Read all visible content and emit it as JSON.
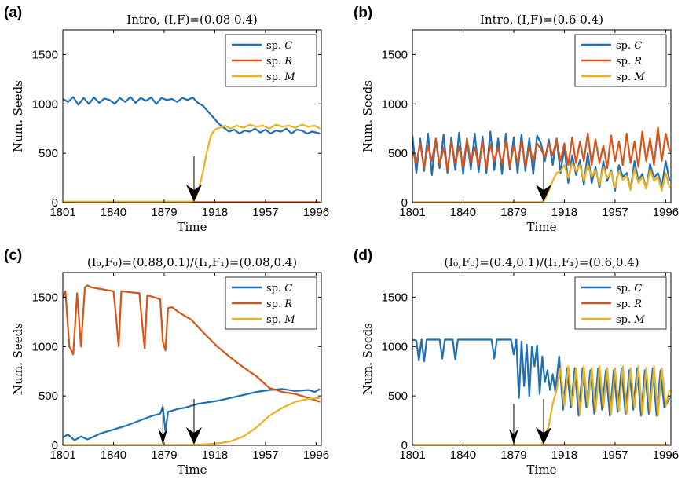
{
  "chart_data": [
    {
      "type": "line",
      "panel": "(a)",
      "title": "Intro, (I,F)=(0.08 0.4)",
      "xlabel": "Time",
      "ylabel": "Num. Seeds",
      "xlim": [
        1801,
        2000
      ],
      "ylim": [
        0,
        1750
      ],
      "xticks": [
        1801,
        1840,
        1879,
        1918,
        1957,
        1996
      ],
      "yticks": [
        0,
        500,
        1000,
        1500
      ],
      "legend": "top-right",
      "grid": false,
      "arrows": [
        1902
      ],
      "series": [
        {
          "name": "sp. C",
          "color": "#1f6fb5",
          "x": [
            1801,
            1805,
            1809,
            1813,
            1817,
            1821,
            1825,
            1829,
            1833,
            1837,
            1841,
            1845,
            1849,
            1853,
            1857,
            1861,
            1865,
            1869,
            1873,
            1877,
            1881,
            1885,
            1889,
            1893,
            1897,
            1901,
            1905,
            1909,
            1913,
            1917,
            1921,
            1925,
            1929,
            1933,
            1937,
            1941,
            1945,
            1949,
            1953,
            1957,
            1961,
            1965,
            1969,
            1973,
            1977,
            1981,
            1985,
            1989,
            1993,
            1999
          ],
          "values": [
            1050,
            1020,
            1070,
            990,
            1060,
            1000,
            1065,
            1010,
            1055,
            1040,
            1000,
            1060,
            1020,
            1070,
            1010,
            1060,
            1030,
            1065,
            1000,
            1060,
            1040,
            1050,
            1020,
            1060,
            1040,
            1065,
            1010,
            980,
            920,
            860,
            800,
            760,
            720,
            740,
            700,
            730,
            720,
            750,
            710,
            740,
            700,
            730,
            720,
            750,
            700,
            740,
            730,
            700,
            720,
            700
          ]
        },
        {
          "name": "sp. R",
          "color": "#d95319",
          "x": [
            1801,
            1999
          ],
          "values": [
            5,
            5
          ]
        },
        {
          "name": "sp. M",
          "color": "#edb120",
          "x": [
            1801,
            1900,
            1903,
            1906,
            1909,
            1912,
            1915,
            1918,
            1922,
            1926,
            1930,
            1935,
            1940,
            1945,
            1950,
            1955,
            1960,
            1965,
            1970,
            1975,
            1980,
            1985,
            1990,
            1995,
            1999
          ],
          "values": [
            10,
            10,
            40,
            150,
            320,
            520,
            680,
            740,
            760,
            780,
            750,
            780,
            760,
            790,
            770,
            780,
            750,
            790,
            770,
            780,
            760,
            790,
            770,
            780,
            750
          ]
        }
      ]
    },
    {
      "type": "line",
      "panel": "(b)",
      "title": "Intro, (I,F)=(0.6 0.4)",
      "xlabel": "Time",
      "ylabel": "Num. Seeds",
      "xlim": [
        1801,
        2000
      ],
      "ylim": [
        0,
        1750
      ],
      "xticks": [
        1801,
        1840,
        1879,
        1918,
        1957,
        1996
      ],
      "yticks": [
        0,
        500,
        1000,
        1500
      ],
      "legend": "top-right",
      "grid": false,
      "arrows": [
        1902
      ],
      "series": [
        {
          "name": "sp. C",
          "color": "#1f6fb5",
          "x": [
            1801,
            1804,
            1807,
            1810,
            1813,
            1816,
            1819,
            1822,
            1825,
            1828,
            1831,
            1834,
            1837,
            1840,
            1843,
            1846,
            1849,
            1852,
            1855,
            1858,
            1861,
            1864,
            1867,
            1870,
            1873,
            1876,
            1879,
            1882,
            1885,
            1888,
            1891,
            1894,
            1897,
            1900,
            1903,
            1906,
            1909,
            1912,
            1915,
            1918,
            1921,
            1924,
            1927,
            1930,
            1933,
            1936,
            1939,
            1942,
            1945,
            1948,
            1951,
            1954,
            1957,
            1960,
            1963,
            1966,
            1969,
            1972,
            1975,
            1978,
            1981,
            1984,
            1987,
            1990,
            1993,
            1996,
            1999
          ],
          "values": [
            680,
            300,
            650,
            320,
            700,
            280,
            640,
            350,
            690,
            300,
            660,
            330,
            710,
            290,
            650,
            340,
            700,
            310,
            670,
            300,
            720,
            330,
            650,
            290,
            700,
            340,
            660,
            300,
            690,
            320,
            650,
            290,
            680,
            600,
            420,
            640,
            380,
            650,
            300,
            560,
            200,
            480,
            280,
            430,
            180,
            500,
            200,
            360,
            150,
            420,
            220,
            330,
            120,
            380,
            260,
            300,
            130,
            420,
            220,
            290,
            140,
            390,
            250,
            300,
            160,
            420,
            220
          ]
        },
        {
          "name": "sp. R",
          "color": "#d95319",
          "x": [
            1801,
            1804,
            1807,
            1810,
            1813,
            1816,
            1819,
            1822,
            1825,
            1828,
            1831,
            1834,
            1837,
            1840,
            1843,
            1846,
            1849,
            1852,
            1855,
            1858,
            1861,
            1864,
            1867,
            1870,
            1873,
            1876,
            1879,
            1882,
            1885,
            1888,
            1891,
            1894,
            1897,
            1900,
            1903,
            1906,
            1909,
            1912,
            1915,
            1918,
            1921,
            1924,
            1927,
            1930,
            1933,
            1936,
            1939,
            1942,
            1945,
            1948,
            1951,
            1954,
            1957,
            1960,
            1963,
            1966,
            1969,
            1972,
            1975,
            1978,
            1981,
            1984,
            1987,
            1990,
            1993,
            1996,
            1999
          ],
          "values": [
            520,
            400,
            600,
            350,
            580,
            420,
            650,
            380,
            560,
            330,
            620,
            400,
            570,
            360,
            640,
            410,
            560,
            380,
            620,
            350,
            590,
            420,
            560,
            390,
            630,
            360,
            580,
            400,
            620,
            370,
            560,
            420,
            600,
            540,
            460,
            600,
            480,
            640,
            420,
            600,
            380,
            660,
            400,
            620,
            420,
            700,
            380,
            640,
            400,
            580,
            350,
            680,
            420,
            620,
            380,
            700,
            400,
            620,
            360,
            720,
            420,
            650,
            380,
            760,
            420,
            700,
            520
          ]
        },
        {
          "name": "sp. M",
          "color": "#edb120",
          "x": [
            1801,
            1900,
            1903,
            1906,
            1909,
            1912,
            1915,
            1918,
            1921,
            1924,
            1927,
            1930,
            1933,
            1936,
            1939,
            1942,
            1945,
            1948,
            1951,
            1954,
            1957,
            1960,
            1963,
            1966,
            1969,
            1972,
            1975,
            1978,
            1981,
            1984,
            1987,
            1990,
            1993,
            1996,
            1999
          ],
          "values": [
            5,
            5,
            30,
            120,
            220,
            300,
            320,
            380,
            250,
            400,
            320,
            380,
            220,
            380,
            260,
            330,
            180,
            360,
            250,
            310,
            150,
            320,
            230,
            270,
            130,
            340,
            200,
            260,
            140,
            330,
            220,
            260,
            120,
            300,
            150
          ]
        }
      ]
    },
    {
      "type": "line",
      "panel": "(c)",
      "title": "(I_0,F_0)=(0.88,0.1)/(I_1,F_1)=(0.08,0.4)",
      "xlabel": "Time",
      "ylabel": "Num. Seeds",
      "xlim": [
        1801,
        2000
      ],
      "ylim": [
        0,
        1750
      ],
      "xticks": [
        1801,
        1840,
        1879,
        1918,
        1957,
        1996
      ],
      "yticks": [
        0,
        500,
        1000,
        1500
      ],
      "legend": "top-right",
      "grid": false,
      "arrows": [
        1878,
        1902
      ],
      "series": [
        {
          "name": "sp. C",
          "color": "#1f6fb5",
          "x": [
            1801,
            1805,
            1810,
            1815,
            1820,
            1830,
            1840,
            1850,
            1860,
            1870,
            1876,
            1878,
            1880,
            1882,
            1885,
            1890,
            1895,
            1900,
            1905,
            1910,
            1920,
            1930,
            1940,
            1950,
            1960,
            1970,
            1980,
            1990,
            1995,
            1999
          ],
          "values": [
            80,
            110,
            50,
            90,
            60,
            120,
            160,
            200,
            250,
            300,
            320,
            390,
            140,
            340,
            350,
            370,
            380,
            400,
            420,
            430,
            450,
            480,
            510,
            540,
            560,
            570,
            550,
            560,
            540,
            570
          ]
        },
        {
          "name": "sp. R",
          "color": "#d95319",
          "x": [
            1801,
            1803,
            1806,
            1809,
            1812,
            1815,
            1818,
            1820,
            1823,
            1840,
            1842,
            1844,
            1846,
            1860,
            1862,
            1864,
            1866,
            1876,
            1878,
            1880,
            1882,
            1885,
            1890,
            1900,
            1910,
            1920,
            1930,
            1940,
            1950,
            1960,
            1970,
            1980,
            1990,
            1999
          ],
          "values": [
            1500,
            1560,
            1000,
            920,
            1540,
            1000,
            1600,
            1620,
            1600,
            1560,
            1300,
            1000,
            1560,
            1540,
            1250,
            980,
            1520,
            1480,
            1050,
            960,
            1390,
            1400,
            1350,
            1270,
            1130,
            1000,
            890,
            790,
            700,
            580,
            540,
            520,
            480,
            440
          ]
        },
        {
          "name": "sp. M",
          "color": "#edb120",
          "x": [
            1801,
            1900,
            1910,
            1920,
            1930,
            1940,
            1950,
            1960,
            1970,
            1980,
            1990,
            1999
          ],
          "values": [
            5,
            5,
            10,
            20,
            40,
            90,
            180,
            300,
            380,
            440,
            470,
            480
          ]
        }
      ]
    },
    {
      "type": "line",
      "panel": "(d)",
      "title": "(I_0,F_0)=(0.4,0.1)/(I_1,F_1)=(0.6,0.4)",
      "xlabel": "Time",
      "ylabel": "Num. Seeds",
      "xlim": [
        1801,
        2000
      ],
      "ylim": [
        0,
        1750
      ],
      "xticks": [
        1801,
        1840,
        1879,
        1918,
        1957,
        1996
      ],
      "yticks": [
        0,
        500,
        1000,
        1500
      ],
      "legend": "top-right",
      "grid": false,
      "arrows": [
        1879,
        1902
      ],
      "series": [
        {
          "name": "sp. C",
          "color": "#1f6fb5",
          "x": [
            1801,
            1804,
            1806,
            1808,
            1810,
            1812,
            1822,
            1824,
            1826,
            1832,
            1834,
            1836,
            1862,
            1864,
            1866,
            1875,
            1877,
            1879,
            1881,
            1883,
            1885,
            1887,
            1889,
            1891,
            1893,
            1895,
            1897,
            1899,
            1901,
            1903,
            1905,
            1907,
            1909,
            1911,
            1914,
            1917,
            1920,
            1923,
            1926,
            1929,
            1932,
            1935,
            1938,
            1941,
            1944,
            1947,
            1950,
            1953,
            1956,
            1959,
            1962,
            1965,
            1968,
            1971,
            1974,
            1977,
            1980,
            1983,
            1986,
            1989,
            1992,
            1995,
            1999
          ],
          "values": [
            1070,
            1060,
            860,
            1070,
            850,
            1070,
            1070,
            880,
            1070,
            1070,
            870,
            1070,
            1070,
            880,
            1070,
            1070,
            1070,
            920,
            1070,
            480,
            1050,
            600,
            1020,
            500,
            1000,
            800,
            1010,
            520,
            900,
            640,
            760,
            560,
            720,
            540,
            900,
            360,
            780,
            380,
            780,
            300,
            780,
            380,
            760,
            320,
            780,
            360,
            760,
            300,
            760,
            340,
            780,
            320,
            760,
            360,
            780,
            300,
            760,
            320,
            780,
            300,
            760,
            380,
            480
          ]
        },
        {
          "name": "sp. R",
          "color": "#d95319",
          "x": [
            1801,
            1999
          ],
          "values": [
            5,
            5
          ]
        },
        {
          "name": "sp. M",
          "color": "#edb120",
          "x": [
            1801,
            1900,
            1903,
            1906,
            1909,
            1912,
            1915,
            1918,
            1921,
            1924,
            1927,
            1930,
            1933,
            1936,
            1939,
            1942,
            1945,
            1948,
            1951,
            1954,
            1957,
            1960,
            1963,
            1966,
            1969,
            1972,
            1975,
            1978,
            1981,
            1984,
            1987,
            1990,
            1993,
            1996,
            1999
          ],
          "values": [
            5,
            5,
            60,
            200,
            420,
            560,
            780,
            400,
            800,
            400,
            780,
            320,
            800,
            400,
            780,
            340,
            800,
            380,
            780,
            320,
            780,
            350,
            800,
            320,
            780,
            380,
            800,
            320,
            780,
            340,
            800,
            300,
            780,
            400,
            560
          ]
        }
      ]
    }
  ]
}
